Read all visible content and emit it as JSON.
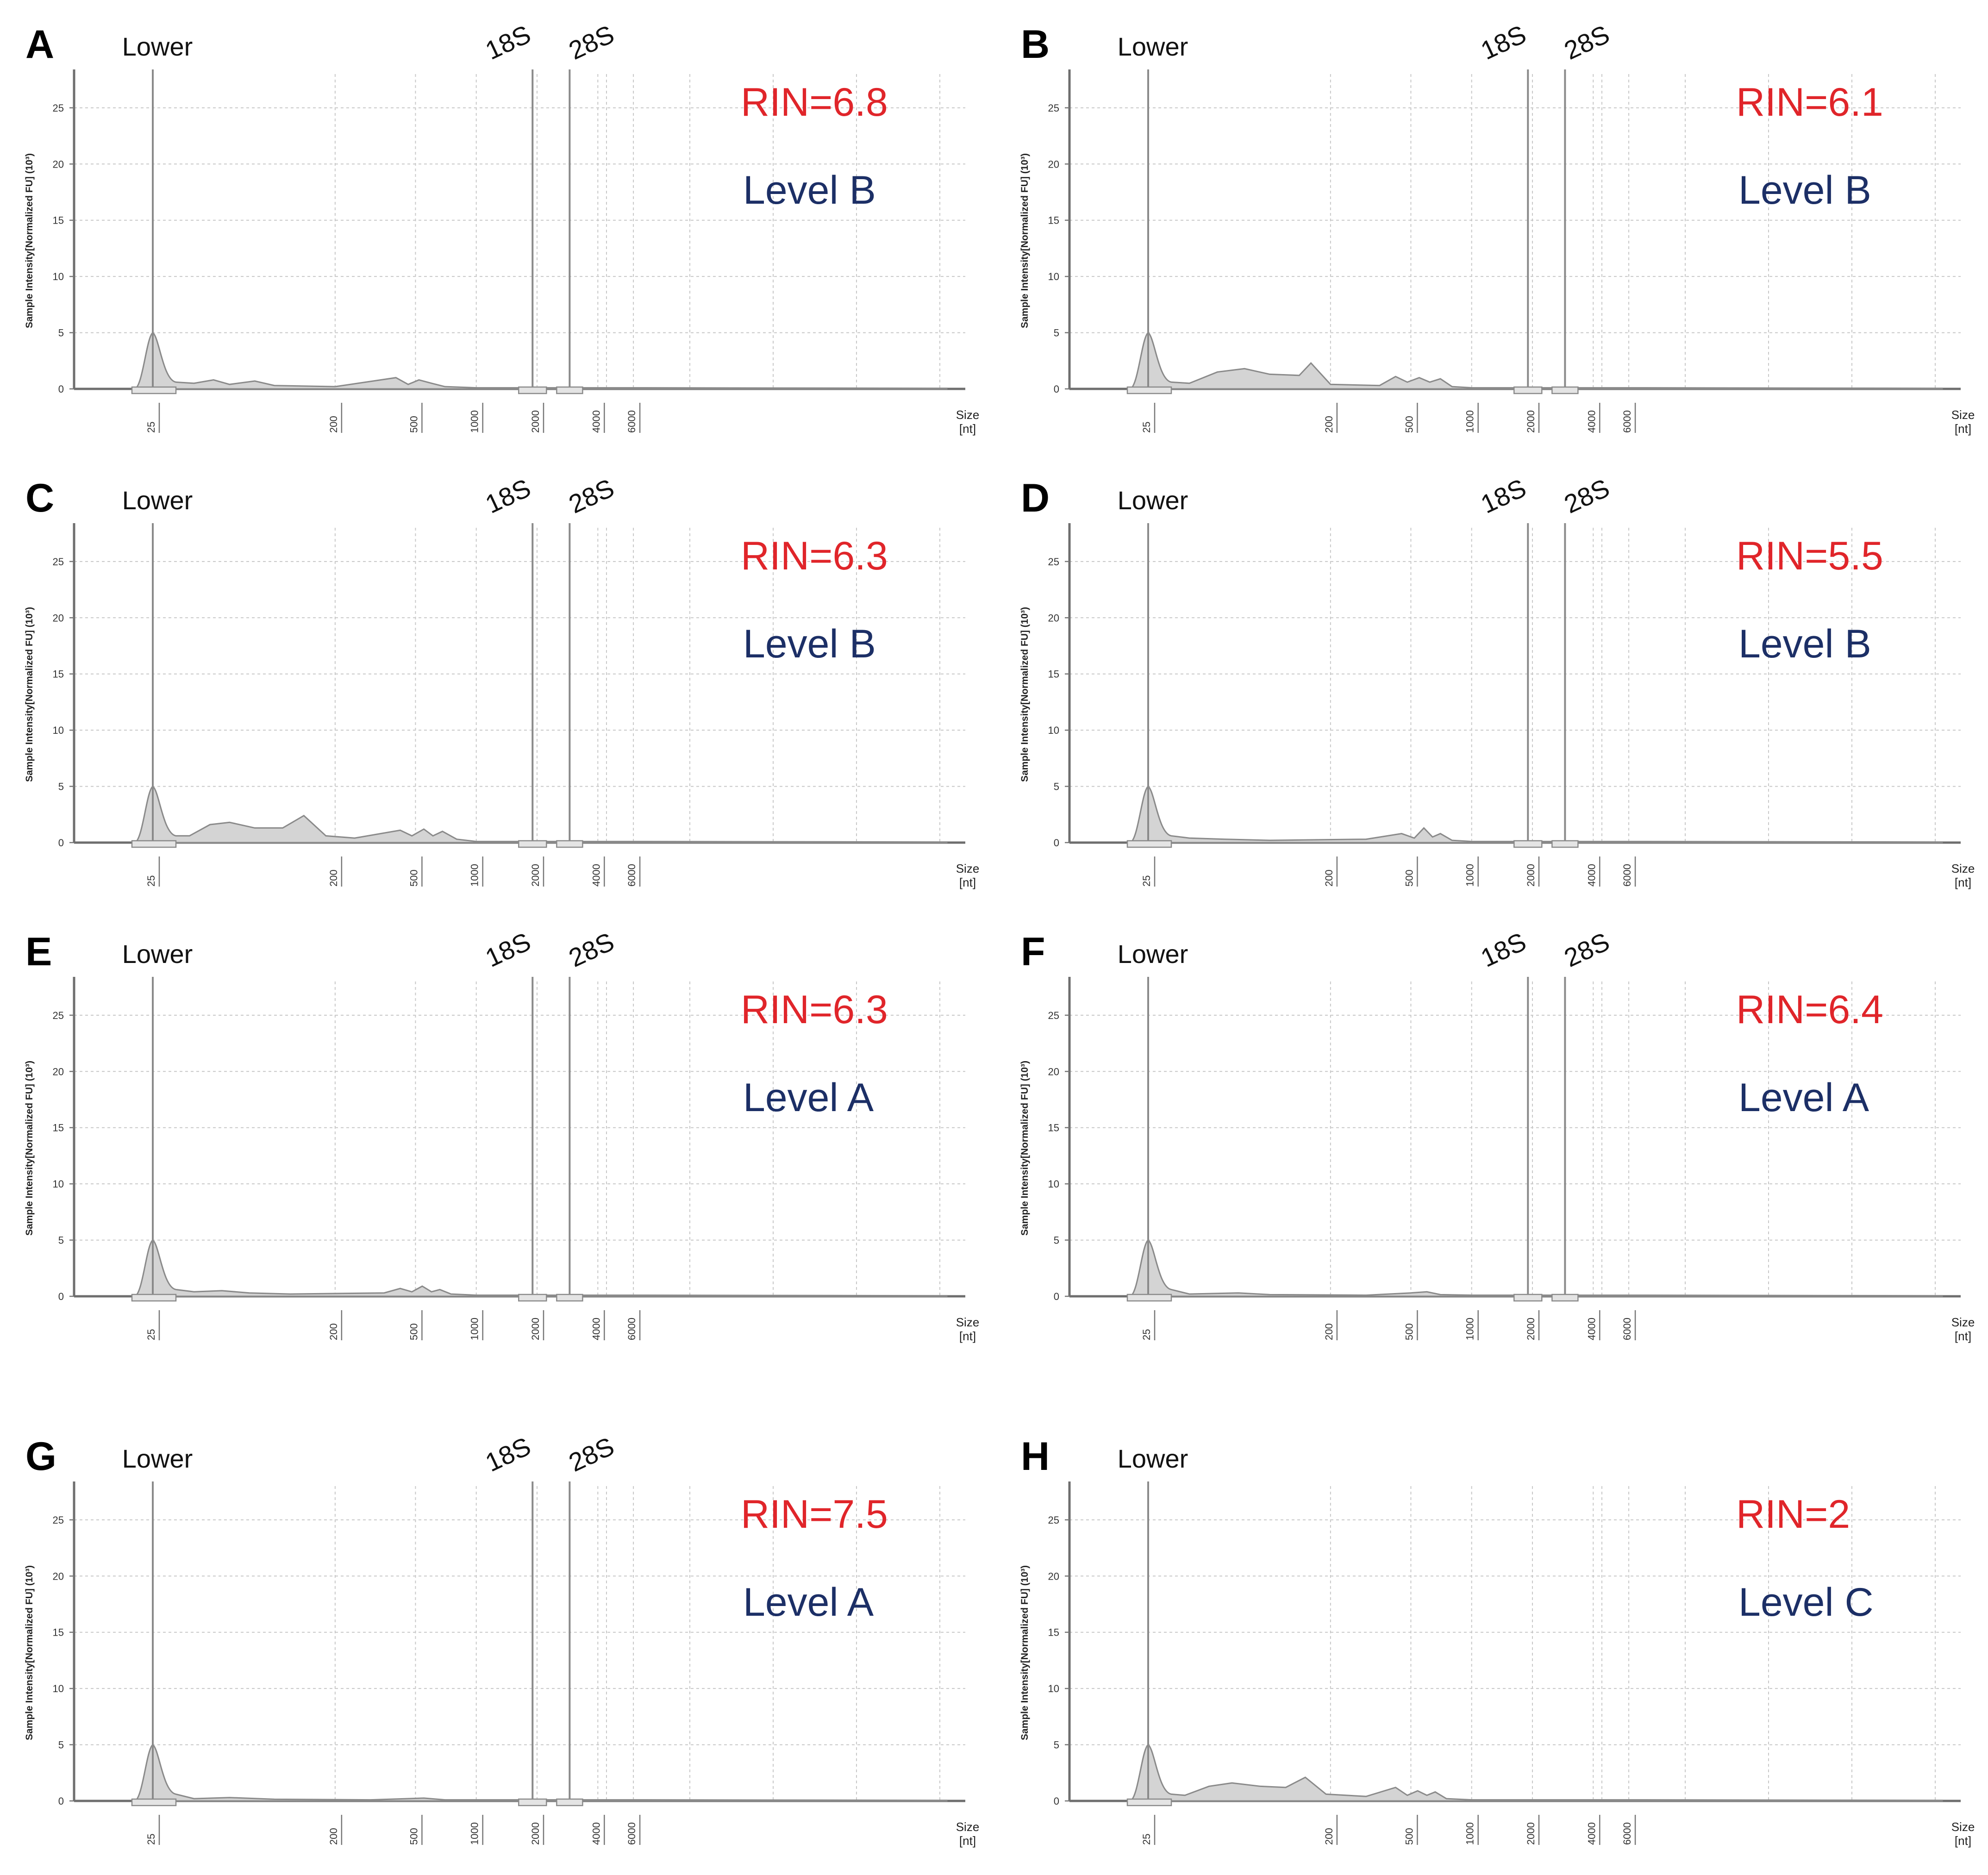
{
  "figure": {
    "colors": {
      "rin": "#e0252a",
      "level": "#1c2f66",
      "trace_fill": "#d4d4d4",
      "trace_line": "#8a8a8a",
      "grid": "#c8c8c8"
    }
  },
  "chart_data": [
    {
      "type": "area",
      "panel": "A",
      "rin": "RIN=6.8",
      "level": "Level B",
      "ylabel": "Sample Intensity[Normalized FU] (10³)",
      "xlabel": "Size [nt]",
      "y_ticks": [
        "0",
        "5",
        "10",
        "15",
        "20",
        "25"
      ],
      "ylim": [
        0,
        28
      ],
      "x_ticks": [
        "25",
        "200",
        "500",
        "1000",
        "2000",
        "4000",
        "6000"
      ],
      "peak_labels": {
        "lower": "Lower",
        "s18": "18S",
        "s28": "28S"
      },
      "trace": [
        [
          25,
          0
        ],
        [
          25,
          5
        ],
        [
          40,
          0.5
        ],
        [
          50,
          0.8
        ],
        [
          60,
          0.4
        ],
        [
          80,
          0.7
        ],
        [
          100,
          0.3
        ],
        [
          200,
          0.2
        ],
        [
          400,
          1.0
        ],
        [
          460,
          0.4
        ],
        [
          520,
          0.8
        ],
        [
          600,
          0.5
        ],
        [
          700,
          0.2
        ],
        [
          1000,
          0.1
        ],
        [
          6000,
          0.1
        ]
      ],
      "markers": {
        "lower_nt": 25,
        "s18_nt": 1900,
        "s28_nt": 2900
      }
    },
    {
      "type": "area",
      "panel": "B",
      "rin": "RIN=6.1",
      "level": "Level B",
      "ylabel": "Sample Intensity[Normalized FU] (10³)",
      "xlabel": "Size [nt]",
      "y_ticks": [
        "0",
        "5",
        "10",
        "15",
        "20",
        "25"
      ],
      "ylim": [
        0,
        28
      ],
      "x_ticks": [
        "25",
        "200",
        "500",
        "1000",
        "2000",
        "4000",
        "6000"
      ],
      "peak_labels": {
        "lower": "Lower",
        "s18": "18S",
        "s28": "28S"
      },
      "trace": [
        [
          25,
          0
        ],
        [
          25,
          5
        ],
        [
          40,
          0.5
        ],
        [
          55,
          1.5
        ],
        [
          75,
          1.8
        ],
        [
          100,
          1.3
        ],
        [
          140,
          1.2
        ],
        [
          160,
          2.3
        ],
        [
          200,
          0.4
        ],
        [
          350,
          0.3
        ],
        [
          420,
          1.1
        ],
        [
          480,
          0.6
        ],
        [
          550,
          1.0
        ],
        [
          620,
          0.6
        ],
        [
          700,
          0.9
        ],
        [
          800,
          0.2
        ],
        [
          1000,
          0.1
        ],
        [
          6000,
          0.1
        ]
      ],
      "markers": {
        "lower_nt": 25,
        "s18_nt": 1900,
        "s28_nt": 2900
      }
    },
    {
      "type": "area",
      "panel": "C",
      "rin": "RIN=6.3",
      "level": "Level B",
      "ylabel": "Sample Intensity[Normalized FU] (10³)",
      "xlabel": "Size [nt]",
      "y_ticks": [
        "0",
        "5",
        "10",
        "15",
        "20",
        "25"
      ],
      "ylim": [
        0,
        28
      ],
      "x_ticks": [
        "25",
        "200",
        "500",
        "1000",
        "2000",
        "4000",
        "6000"
      ],
      "peak_labels": {
        "lower": "Lower",
        "s18": "18S",
        "s28": "28S"
      },
      "trace": [
        [
          25,
          0
        ],
        [
          25,
          5
        ],
        [
          38,
          0.6
        ],
        [
          48,
          1.6
        ],
        [
          60,
          1.8
        ],
        [
          80,
          1.3
        ],
        [
          110,
          1.3
        ],
        [
          140,
          2.4
        ],
        [
          180,
          0.6
        ],
        [
          250,
          0.4
        ],
        [
          420,
          1.1
        ],
        [
          480,
          0.6
        ],
        [
          550,
          1.2
        ],
        [
          610,
          0.6
        ],
        [
          680,
          1.0
        ],
        [
          800,
          0.3
        ],
        [
          1000,
          0.1
        ],
        [
          6000,
          0.1
        ]
      ],
      "markers": {
        "lower_nt": 25,
        "s18_nt": 1900,
        "s28_nt": 2900
      }
    },
    {
      "type": "area",
      "panel": "D",
      "rin": "RIN=5.5",
      "level": "Level B",
      "ylabel": "Sample Intensity[Normalized FU] (10³)",
      "xlabel": "Size [nt]",
      "y_ticks": [
        "0",
        "5",
        "10",
        "15",
        "20",
        "25"
      ],
      "ylim": [
        0,
        28
      ],
      "x_ticks": [
        "25",
        "200",
        "500",
        "1000",
        "2000",
        "4000",
        "6000"
      ],
      "peak_labels": {
        "lower": "Lower",
        "s18": "18S",
        "s28": "28S"
      },
      "trace": [
        [
          25,
          0
        ],
        [
          25,
          5
        ],
        [
          40,
          0.4
        ],
        [
          60,
          0.3
        ],
        [
          100,
          0.2
        ],
        [
          300,
          0.3
        ],
        [
          450,
          0.8
        ],
        [
          520,
          0.4
        ],
        [
          580,
          1.3
        ],
        [
          640,
          0.5
        ],
        [
          700,
          0.8
        ],
        [
          800,
          0.2
        ],
        [
          1000,
          0.1
        ],
        [
          6000,
          0.1
        ]
      ],
      "markers": {
        "lower_nt": 25,
        "s18_nt": 1900,
        "s28_nt": 2900
      }
    },
    {
      "type": "area",
      "panel": "E",
      "rin": "RIN=6.3",
      "level": "Level A",
      "ylabel": "Sample Intensity[Normalized FU] (10³)",
      "xlabel": "Size [nt]",
      "y_ticks": [
        "0",
        "5",
        "10",
        "15",
        "20",
        "25"
      ],
      "ylim": [
        0,
        28
      ],
      "x_ticks": [
        "25",
        "200",
        "500",
        "1000",
        "2000",
        "4000",
        "6000"
      ],
      "peak_labels": {
        "lower": "Lower",
        "s18": "18S",
        "s28": "28S"
      },
      "trace": [
        [
          25,
          0
        ],
        [
          25,
          5
        ],
        [
          40,
          0.4
        ],
        [
          55,
          0.5
        ],
        [
          75,
          0.3
        ],
        [
          120,
          0.2
        ],
        [
          350,
          0.3
        ],
        [
          420,
          0.7
        ],
        [
          480,
          0.4
        ],
        [
          540,
          0.9
        ],
        [
          600,
          0.4
        ],
        [
          660,
          0.6
        ],
        [
          750,
          0.2
        ],
        [
          1000,
          0.1
        ],
        [
          6000,
          0.1
        ]
      ],
      "markers": {
        "lower_nt": 25,
        "s18_nt": 1900,
        "s28_nt": 2900
      }
    },
    {
      "type": "area",
      "panel": "F",
      "rin": "RIN=6.4",
      "level": "Level A",
      "ylabel": "Sample Intensity[Normalized FU] (10³)",
      "xlabel": "Size [nt]",
      "y_ticks": [
        "0",
        "5",
        "10",
        "15",
        "20",
        "25"
      ],
      "ylim": [
        0,
        28
      ],
      "x_ticks": [
        "25",
        "200",
        "500",
        "1000",
        "2000",
        "4000",
        "6000"
      ],
      "peak_labels": {
        "lower": "Lower",
        "s18": "18S",
        "s28": "28S"
      },
      "trace": [
        [
          25,
          0
        ],
        [
          25,
          5
        ],
        [
          40,
          0.2
        ],
        [
          70,
          0.3
        ],
        [
          100,
          0.15
        ],
        [
          300,
          0.1
        ],
        [
          500,
          0.3
        ],
        [
          600,
          0.4
        ],
        [
          700,
          0.15
        ],
        [
          1000,
          0.1
        ],
        [
          6000,
          0.1
        ]
      ],
      "markers": {
        "lower_nt": 25,
        "s18_nt": 1900,
        "s28_nt": 2900
      }
    },
    {
      "type": "area",
      "panel": "G",
      "rin": "RIN=7.5",
      "level": "Level A",
      "ylabel": "Sample Intensity[Normalized FU] (10³)",
      "xlabel": "Size [nt]",
      "y_ticks": [
        "0",
        "5",
        "10",
        "15",
        "20",
        "25"
      ],
      "ylim": [
        0,
        28
      ],
      "x_ticks": [
        "25",
        "200",
        "500",
        "1000",
        "2000",
        "4000",
        "6000"
      ],
      "peak_labels": {
        "lower": "Lower",
        "s18": "18S",
        "s28": "28S"
      },
      "trace": [
        [
          25,
          0
        ],
        [
          25,
          5
        ],
        [
          40,
          0.2
        ],
        [
          60,
          0.3
        ],
        [
          100,
          0.15
        ],
        [
          300,
          0.1
        ],
        [
          550,
          0.25
        ],
        [
          700,
          0.1
        ],
        [
          1000,
          0.1
        ],
        [
          6000,
          0.1
        ]
      ],
      "markers": {
        "lower_nt": 25,
        "s18_nt": 1900,
        "s28_nt": 2900
      }
    },
    {
      "type": "area",
      "panel": "H",
      "rin": "RIN=2",
      "level": "Level C",
      "ylabel": "Sample Intensity[Normalized FU] (10³)",
      "xlabel": "Size [nt]",
      "y_ticks": [
        "0",
        "5",
        "10",
        "15",
        "20",
        "25"
      ],
      "ylim": [
        0,
        28
      ],
      "x_ticks": [
        "25",
        "200",
        "500",
        "1000",
        "2000",
        "4000",
        "6000"
      ],
      "peak_labels": {
        "lower": "Lower",
        "s18": "",
        "s28": ""
      },
      "trace": [
        [
          25,
          0
        ],
        [
          25,
          5
        ],
        [
          38,
          0.5
        ],
        [
          50,
          1.3
        ],
        [
          65,
          1.6
        ],
        [
          90,
          1.3
        ],
        [
          120,
          1.2
        ],
        [
          150,
          2.1
        ],
        [
          190,
          0.6
        ],
        [
          300,
          0.4
        ],
        [
          420,
          1.2
        ],
        [
          480,
          0.5
        ],
        [
          540,
          0.9
        ],
        [
          600,
          0.5
        ],
        [
          660,
          0.8
        ],
        [
          750,
          0.2
        ],
        [
          1000,
          0.1
        ],
        [
          6000,
          0.1
        ]
      ],
      "markers": {
        "lower_nt": 25
      }
    }
  ]
}
